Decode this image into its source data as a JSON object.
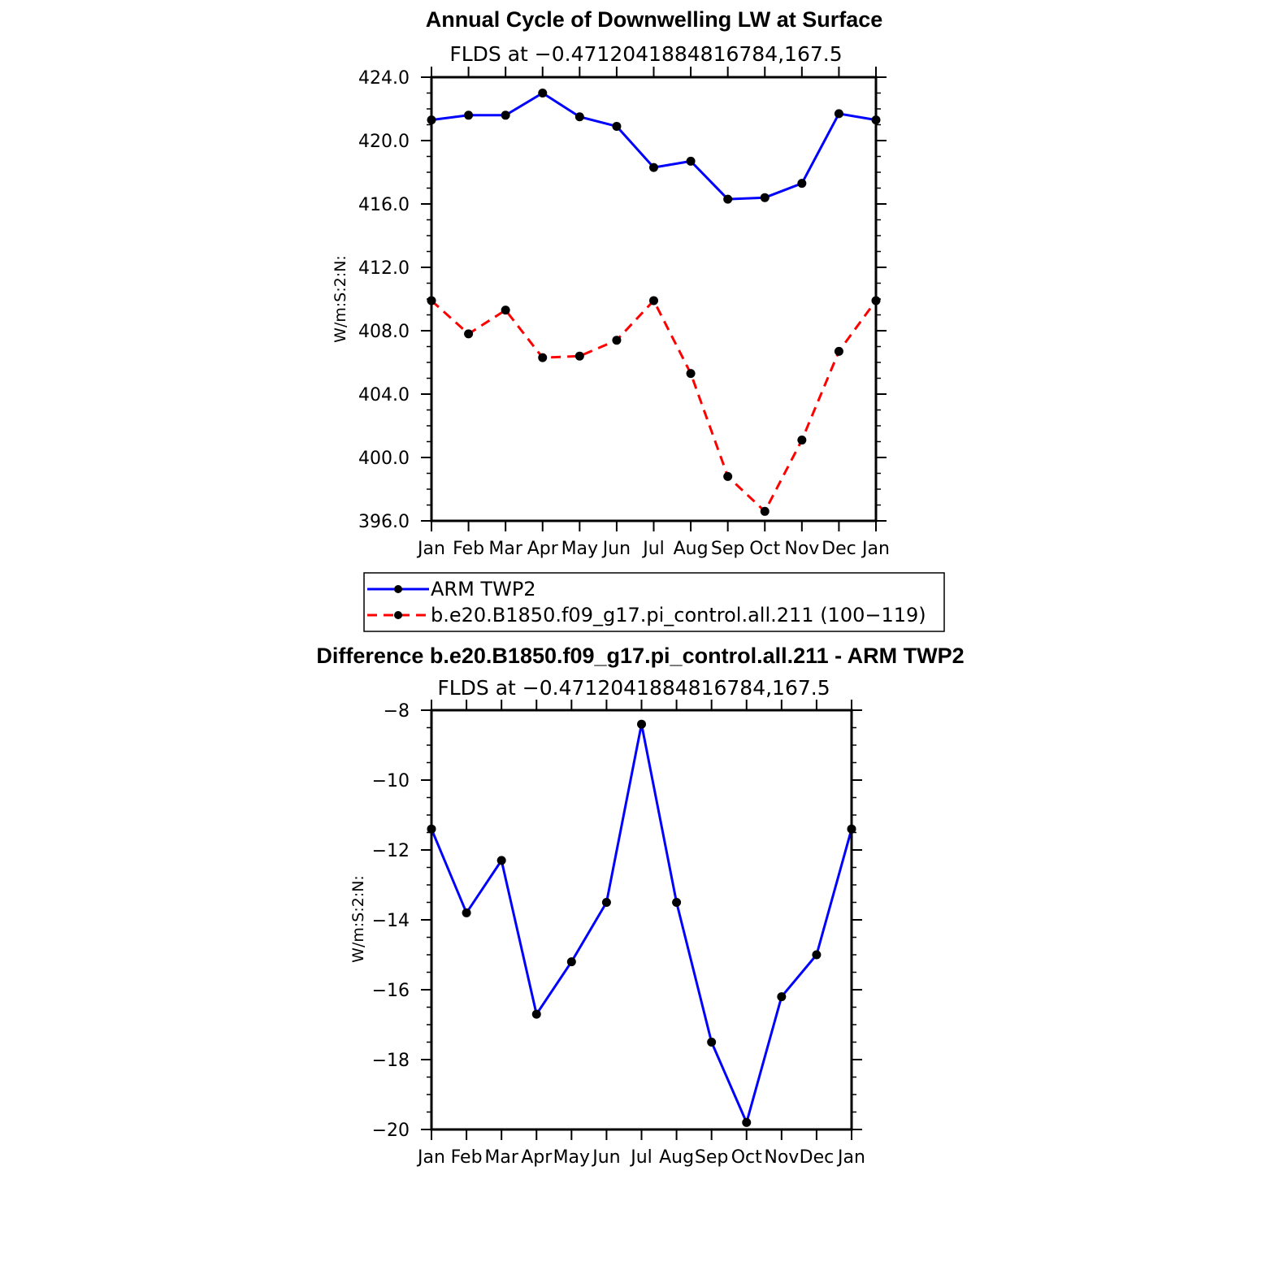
{
  "chart_data": [
    {
      "type": "line",
      "title": "Annual Cycle of Downwelling LW at Surface",
      "subtitle": "FLDS at −0.4712041884816784,167.5",
      "ylabel": "W/m:S:2:N:",
      "categories": [
        "Jan",
        "Feb",
        "Mar",
        "Apr",
        "May",
        "Jun",
        "Jul",
        "Aug",
        "Sep",
        "Oct",
        "Nov",
        "Dec",
        "Jan"
      ],
      "ylim": [
        396,
        424
      ],
      "yticks": [
        "396.0",
        "400.0",
        "404.0",
        "408.0",
        "412.0",
        "416.0",
        "420.0",
        "424.0"
      ],
      "series": [
        {
          "name": "ARM TWP2",
          "color": "#0000ff",
          "dash": "solid",
          "values": [
            421.3,
            421.6,
            421.6,
            423.0,
            421.5,
            420.9,
            418.3,
            418.7,
            416.3,
            416.4,
            417.3,
            421.7,
            421.3
          ]
        },
        {
          "name": "b.e20.B1850.f09_g17.pi_control.all.211 (100−119)",
          "color": "#ff0000",
          "dash": "dashed",
          "values": [
            409.9,
            407.8,
            409.3,
            406.3,
            406.4,
            407.4,
            409.9,
            405.3,
            398.8,
            396.6,
            401.1,
            406.7,
            409.9
          ]
        }
      ]
    },
    {
      "type": "line",
      "title": "Difference b.e20.B1850.f09_g17.pi_control.all.211 - ARM TWP2",
      "subtitle": "FLDS at −0.4712041884816784,167.5",
      "ylabel": "W/m:S:2:N:",
      "categories": [
        "Jan",
        "Feb",
        "Mar",
        "Apr",
        "May",
        "Jun",
        "Jul",
        "Aug",
        "Sep",
        "Oct",
        "Nov",
        "Dec",
        "Jan"
      ],
      "ylim": [
        -20,
        -8
      ],
      "yticks": [
        "−20",
        "−18",
        "−16",
        "−14",
        "−12",
        "−10",
        "−8"
      ],
      "series": [
        {
          "name": "",
          "color": "#0000ff",
          "dash": "solid",
          "values": [
            -11.4,
            -13.8,
            -12.3,
            -16.7,
            -15.2,
            -13.5,
            -8.4,
            -13.5,
            -17.5,
            -19.8,
            -16.2,
            -15.0,
            -11.4
          ]
        }
      ]
    }
  ]
}
